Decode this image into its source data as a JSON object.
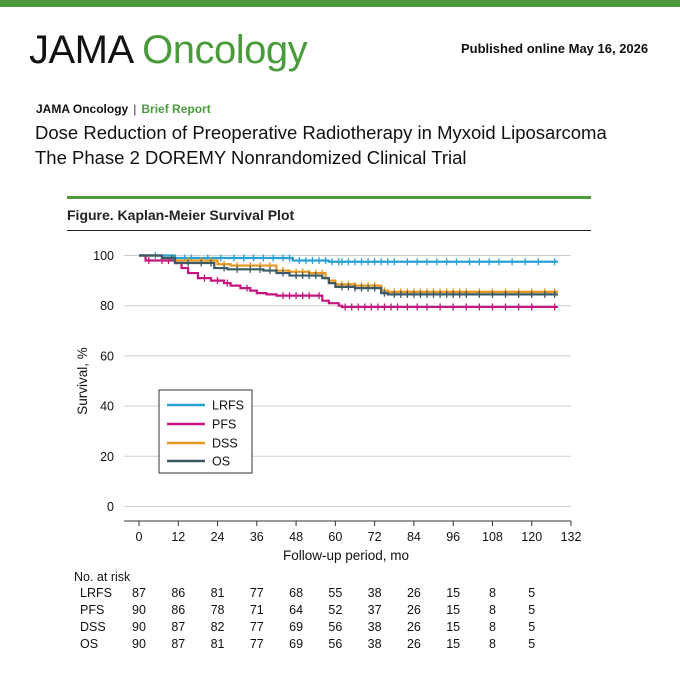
{
  "header": {
    "brand_part1": "JAMA",
    "brand_part2": "Oncology",
    "published": "Published online May 16, 2026",
    "journal": "JAMA Oncology",
    "separator": "|",
    "article_type": "Brief Report",
    "title": "Dose Reduction of Preoperative Radiotherapy in Myxoid Liposarcoma",
    "subtitle": "The Phase 2 DOREMY Nonrandomized Clinical Trial",
    "figure_label": "Figure. Kaplan-Meier Survival Plot"
  },
  "colors": {
    "brand_green": "#4b9b3d",
    "LRFS": "#2aa1d3",
    "PFS": "#c5157f",
    "DSS": "#e8961c",
    "OS": "#3b5a66"
  },
  "chart_data": {
    "type": "line",
    "subtype": "kaplan-meier step",
    "xlabel": "Follow-up period, mo",
    "ylabel": "Survival, %",
    "xlim": [
      0,
      132
    ],
    "ylim": [
      0,
      100
    ],
    "xticks": [
      0,
      12,
      24,
      36,
      48,
      60,
      72,
      84,
      96,
      108,
      120,
      132
    ],
    "yticks": [
      0,
      20,
      40,
      60,
      80,
      100
    ],
    "grid": "horizontal",
    "legend_position": "left-center",
    "series": [
      {
        "name": "LRFS",
        "color": "#2aa1d3",
        "steps": [
          [
            0,
            100
          ],
          [
            11,
            99
          ],
          [
            47,
            98
          ],
          [
            58,
            97.5
          ],
          [
            128,
            97.5
          ]
        ],
        "censor_x": [
          5,
          14,
          16,
          21,
          25,
          29,
          32,
          35,
          38,
          41,
          44,
          46,
          49,
          51,
          53,
          55,
          57,
          59,
          61,
          62,
          64,
          66,
          68,
          70,
          72,
          74,
          76,
          78,
          82,
          85,
          88,
          91,
          94,
          97,
          101,
          104,
          107,
          110,
          114,
          118,
          122,
          127
        ]
      },
      {
        "name": "PFS",
        "color": "#c5157f",
        "steps": [
          [
            0,
            100
          ],
          [
            2,
            98
          ],
          [
            11,
            97
          ],
          [
            13,
            95
          ],
          [
            15,
            93
          ],
          [
            18,
            91
          ],
          [
            22,
            90
          ],
          [
            26,
            89
          ],
          [
            28,
            88
          ],
          [
            31,
            87
          ],
          [
            34,
            86
          ],
          [
            36,
            85
          ],
          [
            39,
            84.5
          ],
          [
            42,
            84
          ],
          [
            54,
            84
          ],
          [
            56,
            82
          ],
          [
            58,
            81
          ],
          [
            61,
            80
          ],
          [
            62,
            79.5
          ],
          [
            128,
            79.5
          ]
        ],
        "censor_x": [
          3,
          7,
          9,
          20,
          24,
          27,
          33,
          44,
          46,
          48,
          50,
          52,
          55,
          63,
          65,
          67,
          69,
          71,
          73,
          75,
          77,
          79,
          82,
          85,
          88,
          92,
          96,
          100,
          104,
          108,
          112,
          116,
          120,
          127
        ]
      },
      {
        "name": "DSS",
        "color": "#e8961c",
        "steps": [
          [
            0,
            100
          ],
          [
            7,
            99
          ],
          [
            11,
            98
          ],
          [
            24,
            96.5
          ],
          [
            28,
            96
          ],
          [
            42,
            94
          ],
          [
            46,
            93.5
          ],
          [
            52,
            93
          ],
          [
            57,
            91
          ],
          [
            58,
            90
          ],
          [
            60,
            88.5
          ],
          [
            66,
            88
          ],
          [
            74,
            86
          ],
          [
            76,
            85.5
          ],
          [
            128,
            85.5
          ]
        ],
        "censor_x": [
          10,
          15,
          19,
          22,
          26,
          30,
          34,
          37,
          40,
          44,
          48,
          50,
          52,
          54,
          56,
          62,
          64,
          66,
          68,
          70,
          72,
          75,
          78,
          80,
          82,
          84,
          86,
          88,
          90,
          92,
          94,
          96,
          98,
          100,
          104,
          108,
          112,
          116,
          120,
          124,
          127
        ]
      },
      {
        "name": "OS",
        "color": "#3b5a66",
        "steps": [
          [
            0,
            100
          ],
          [
            7,
            99
          ],
          [
            11,
            97
          ],
          [
            23,
            95
          ],
          [
            27,
            94.5
          ],
          [
            38,
            94
          ],
          [
            42,
            93
          ],
          [
            46,
            92
          ],
          [
            56,
            91
          ],
          [
            58,
            89
          ],
          [
            60,
            87.5
          ],
          [
            66,
            87
          ],
          [
            74,
            85
          ],
          [
            76,
            84.5
          ],
          [
            128,
            84.5
          ]
        ],
        "censor_x": [
          10,
          15,
          19,
          22,
          26,
          30,
          34,
          37,
          40,
          44,
          48,
          50,
          52,
          54,
          62,
          64,
          66,
          68,
          70,
          72,
          75,
          78,
          80,
          82,
          84,
          86,
          88,
          90,
          92,
          94,
          96,
          98,
          100,
          104,
          108,
          112,
          116,
          120,
          124,
          127
        ]
      }
    ]
  },
  "risk_table": {
    "title": "No. at risk",
    "rows": [
      {
        "label": "LRFS",
        "values": [
          "87",
          "86",
          "81",
          "77",
          "68",
          "55",
          "38",
          "26",
          "15",
          "8",
          "5"
        ]
      },
      {
        "label": "PFS",
        "values": [
          "90",
          "86",
          "78",
          "71",
          "64",
          "52",
          "37",
          "26",
          "15",
          "8",
          "5"
        ]
      },
      {
        "label": "DSS",
        "values": [
          "90",
          "87",
          "82",
          "77",
          "69",
          "56",
          "38",
          "26",
          "15",
          "8",
          "5"
        ]
      },
      {
        "label": "OS",
        "values": [
          "90",
          "87",
          "81",
          "77",
          "69",
          "56",
          "38",
          "26",
          "15",
          "8",
          "5"
        ]
      }
    ]
  }
}
